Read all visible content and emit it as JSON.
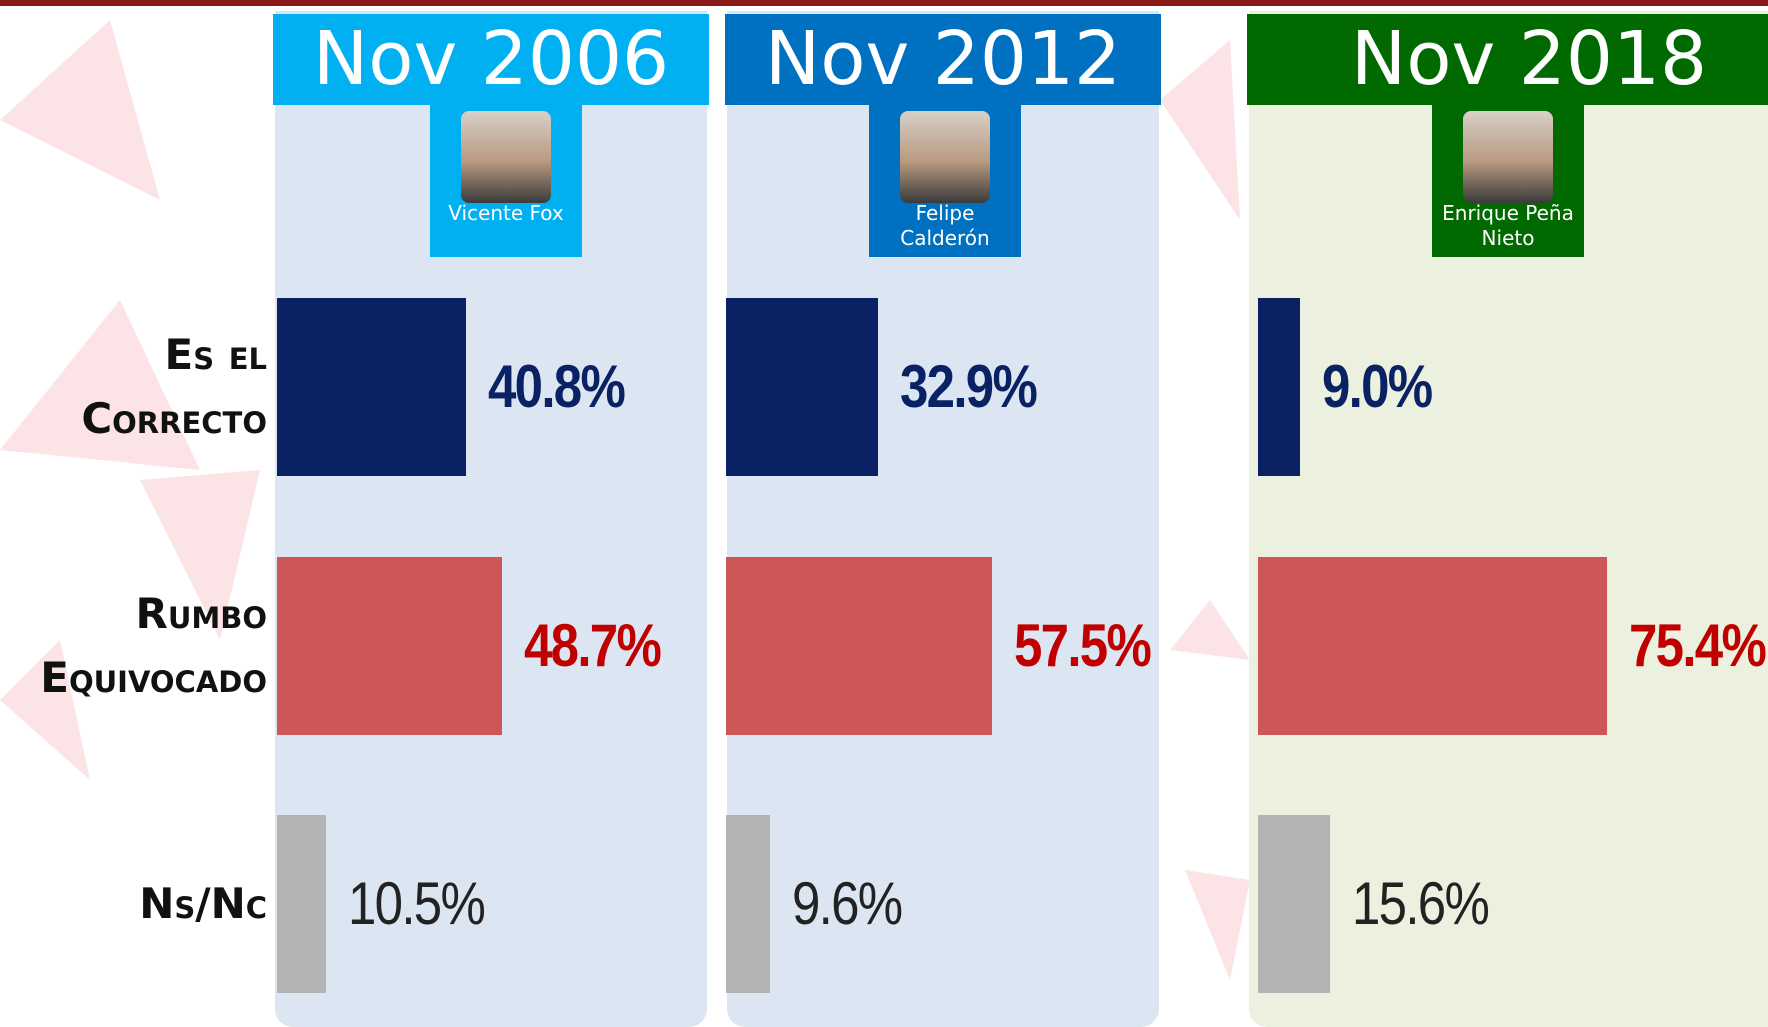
{
  "chart_data": {
    "type": "bar",
    "categories": [
      "Es el Correcto",
      "Rumbo Equivocado",
      "Ns/Nc"
    ],
    "colors": [
      "#0a2164",
      "#cd5656",
      "#b3b3b3"
    ],
    "series": [
      {
        "name": "Nov 2006",
        "president": "Vicente Fox",
        "color": "#00b0f0",
        "values": [
          40.8,
          48.7,
          10.5
        ],
        "value_labels": [
          "40.8%",
          "48.7%",
          "10.5%"
        ]
      },
      {
        "name": "Nov 2012",
        "president": "Felipe Calderón",
        "color": "#0070c0",
        "values": [
          32.9,
          57.5,
          9.6
        ],
        "value_labels": [
          "32.9%",
          "57.5%",
          "9.6%"
        ]
      },
      {
        "name": "Nov 2018",
        "president": "Enrique Peña Nieto",
        "color": "#006a00",
        "values": [
          9.0,
          75.4,
          15.6
        ],
        "value_labels": [
          "9.0%",
          "75.4%",
          "15.6%"
        ]
      }
    ]
  }
}
